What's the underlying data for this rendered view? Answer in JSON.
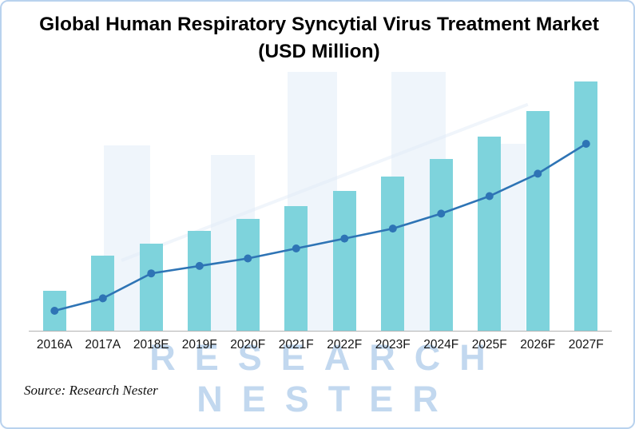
{
  "title": "Global Human Respiratory Syncytial Virus Treatment Market (USD Million)",
  "source_caption": "Source: Research Nester",
  "watermark": {
    "line1": "RESEARCH",
    "line2": "NESTER"
  },
  "colors": {
    "bar": "#7ed3dc",
    "line": "#2e74b5",
    "axis": "#b3b3b3",
    "title_text": "#000000",
    "tick_text": "#141414",
    "source_text": "#111111",
    "watermark_graphic": "#e2ecf7",
    "watermark_text": "#a9c8e9",
    "border": "#b9d2ee"
  },
  "chart_data": {
    "type": "bar",
    "title": "Global Human Respiratory Syncytial Virus Treatment Market (USD Million)",
    "categories": [
      "2016A",
      "2017A",
      "2018E",
      "2019F",
      "2020F",
      "2021F",
      "2022F",
      "2023F",
      "2024F",
      "2025F",
      "2026F",
      "2027F"
    ],
    "series": [
      {
        "name": "bars",
        "type": "bar",
        "values": [
          16,
          30,
          35,
          40,
          45,
          50,
          56,
          62,
          69,
          78,
          88,
          100
        ]
      },
      {
        "name": "trend-line",
        "type": "line",
        "values": [
          8,
          13,
          23,
          26,
          29,
          33,
          37,
          41,
          47,
          54,
          63,
          75
        ]
      }
    ],
    "xlabel": "",
    "ylabel": "",
    "ylim": [
      0,
      100
    ],
    "grid": false,
    "legend_position": "none",
    "y_axis_labels_visible": false
  }
}
